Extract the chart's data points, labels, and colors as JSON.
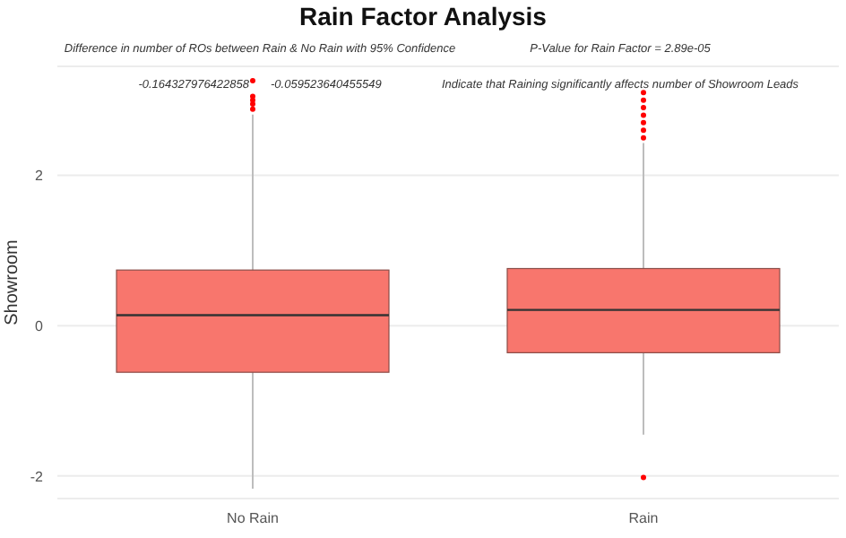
{
  "chart_data": {
    "type": "box",
    "title": "Rain Factor Analysis",
    "ylabel": "Showroom",
    "categories": [
      "No Rain",
      "Rain"
    ],
    "series": [
      {
        "color": "#f8766d",
        "boxes": [
          {
            "low": -2.17,
            "q1": -0.62,
            "median": 0.14,
            "q3": 0.74,
            "high": 2.81,
            "outliers": [
              2.88,
              2.95,
              3.0,
              3.05,
              3.26
            ]
          },
          {
            "low": -1.45,
            "q1": -0.36,
            "median": 0.21,
            "q3": 0.76,
            "high": 2.43,
            "outliers": [
              -2.02,
              2.5,
              2.6,
              2.7,
              2.8,
              2.9,
              3.0,
              3.1
            ]
          }
        ]
      }
    ],
    "ylim": [
      -2.3,
      3.45
    ],
    "yticks": [
      -2,
      0,
      2
    ],
    "grid": "y",
    "annotations": [
      "Difference in number of ROs between Rain & No Rain with 95% Confidence",
      "P-Value for Rain Factor =  2.89e-05",
      "-0.164327976422858",
      "-0.059523640455549",
      "Indicate that Raining significantly affects number of Showroom Leads"
    ]
  }
}
